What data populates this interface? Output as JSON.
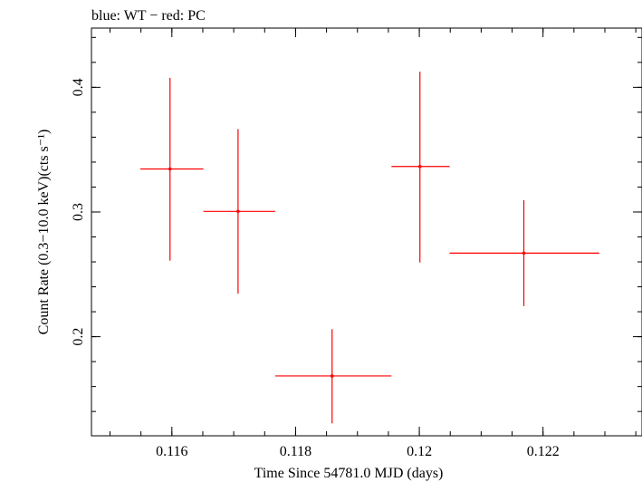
{
  "chart_data": {
    "type": "scatter",
    "title": "blue: WT − red: PC",
    "xlabel": "Time Since 54781.0 MJD (days)",
    "ylabel": "Count Rate (0.3−10.0 keV)(cts s⁻¹)",
    "xlim": [
      0.1147,
      0.1236
    ],
    "ylim": [
      0.1205,
      0.4475
    ],
    "xticks": [
      0.116,
      0.118,
      0.12,
      0.122
    ],
    "xtick_labels": [
      "0.116",
      "0.118",
      "0.12",
      "0.122"
    ],
    "yticks": [
      0.2,
      0.3,
      0.4
    ],
    "ytick_labels": [
      "0.2",
      "0.3",
      "0.4"
    ],
    "grid": false,
    "series": [
      {
        "name": "PC",
        "color": "#ff0000",
        "points": [
          {
            "x": 0.11597,
            "y": 0.3345,
            "xerr": [
              0.11549,
              0.11651
            ],
            "yerr": [
              0.261,
              0.4075
            ]
          },
          {
            "x": 0.11707,
            "y": 0.3005,
            "xerr": [
              0.11651,
              0.11767
            ],
            "yerr": [
              0.2345,
              0.3665
            ]
          },
          {
            "x": 0.11859,
            "y": 0.1685,
            "xerr": [
              0.11767,
              0.11955
            ],
            "yerr": [
              0.1305,
              0.206
            ]
          },
          {
            "x": 0.12001,
            "y": 0.3365,
            "xerr": [
              0.11955,
              0.12049
            ],
            "yerr": [
              0.2595,
              0.4125
            ]
          },
          {
            "x": 0.12169,
            "y": 0.267,
            "xerr": [
              0.12049,
              0.12291
            ],
            "yerr": [
              0.2245,
              0.3095
            ]
          }
        ]
      }
    ]
  }
}
